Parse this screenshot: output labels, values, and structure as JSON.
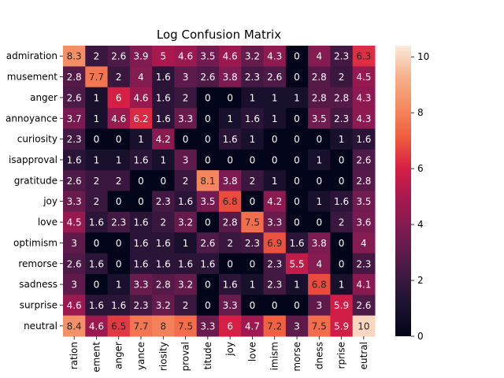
{
  "chart_data": {
    "type": "heatmap",
    "title": "Log Confusion Matrix",
    "x_tick_labels": [
      "ration",
      "ement",
      "anger",
      "yance",
      "riosity",
      "proval",
      "titude",
      "joy",
      "love",
      "imism",
      "morse",
      "dness",
      "rprise",
      "eutral"
    ],
    "y_tick_labels": [
      "admiration",
      "musement",
      "anger",
      "annoyance",
      "curiosity",
      "isapproval",
      "gratitude",
      "joy",
      "love",
      "optimism",
      "remorse",
      "sadness",
      "surprise",
      "neutral"
    ],
    "value_labels": [
      [
        "8.3",
        "2",
        "2.6",
        "3.9",
        "5",
        "4.6",
        "3.5",
        "4.6",
        "3.2",
        "4.3",
        "0",
        "4",
        "2.3",
        "6.3"
      ],
      [
        "2.8",
        "7.7",
        "2",
        "4",
        "1.6",
        "3",
        "2.6",
        "3.8",
        "2.3",
        "2.6",
        "0",
        "2.8",
        "2",
        "4.5"
      ],
      [
        "2.6",
        "1",
        "6",
        "4.6",
        "1.6",
        "2",
        "0",
        "0",
        "1",
        "1",
        "1",
        "2.8",
        "2.8",
        "4.3"
      ],
      [
        "3.7",
        "1",
        "4.6",
        "6.2",
        "1.6",
        "3.3",
        "0",
        "1",
        "1.6",
        "1",
        "0",
        "3.5",
        "2.3",
        "4.3"
      ],
      [
        "2.3",
        "0",
        "0",
        "1",
        "4.2",
        "0",
        "0",
        "1.6",
        "1",
        "0",
        "0",
        "0",
        "1",
        "1.6"
      ],
      [
        "1.6",
        "1",
        "1",
        "1.6",
        "1",
        "3",
        "0",
        "0",
        "0",
        "0",
        "0",
        "1",
        "0",
        "2.6"
      ],
      [
        "2.6",
        "2",
        "2",
        "0",
        "0",
        "2",
        "8.1",
        "3.8",
        "2",
        "1",
        "0",
        "0",
        "0",
        "2.8"
      ],
      [
        "3.3",
        "2",
        "0",
        "0",
        "2.3",
        "1.6",
        "3.5",
        "6.8",
        "0",
        "4.2",
        "0",
        "1",
        "1.6",
        "3.5"
      ],
      [
        "4.5",
        "1.6",
        "2.3",
        "1.6",
        "2",
        "3.2",
        "0",
        "2.8",
        "7.5",
        "3.3",
        "0",
        "0",
        "2",
        "3.6"
      ],
      [
        "3",
        "0",
        "0",
        "1.6",
        "1.6",
        "1",
        "2.6",
        "2",
        "2.3",
        "6.9",
        "1.6",
        "3.8",
        "0",
        "4"
      ],
      [
        "2.6",
        "1.6",
        "0",
        "1.6",
        "1.6",
        "1.6",
        "1.6",
        "0",
        "0",
        "2.3",
        "5.5",
        "4",
        "0",
        "2.3"
      ],
      [
        "3",
        "0",
        "1",
        "3.3",
        "2.8",
        "3.2",
        "0",
        "1.6",
        "1",
        "2.3",
        "1",
        "6.8",
        "1",
        "4.1"
      ],
      [
        "4.6",
        "1.6",
        "1.6",
        "2.3",
        "3.2",
        "2",
        "0",
        "3.3",
        "0",
        "0",
        "0",
        "3",
        "5.9",
        "2.6"
      ],
      [
        "8.4",
        "4.6",
        "6.5",
        "7.7",
        "8",
        "7.5",
        "3.3",
        "6",
        "4.7",
        "7.2",
        "3",
        "7.5",
        "5.9",
        "10"
      ]
    ],
    "colorbar": {
      "ticks": [
        "0",
        "2",
        "4",
        "6",
        "8",
        "10"
      ],
      "vmin": 0,
      "vmax": 10.4
    },
    "colormap": "rocket"
  }
}
